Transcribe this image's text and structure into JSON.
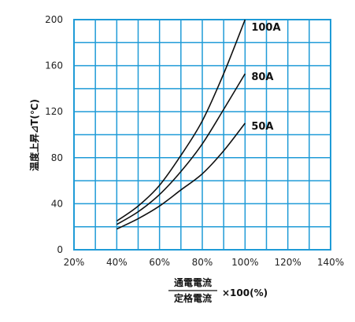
{
  "chart_data": {
    "type": "line",
    "ylabel": "温度上昇⊿T(℃)",
    "xlabel_numerator": "通電電流",
    "xlabel_denominator": "定格電流",
    "xlabel_suffix": "×100(%)",
    "xlim": [
      20,
      140
    ],
    "ylim": [
      0,
      200
    ],
    "x_ticks": [
      20,
      40,
      60,
      80,
      100,
      120,
      140
    ],
    "x_tick_labels": [
      "20%",
      "40%",
      "60%",
      "80%",
      "100%",
      "120%",
      "140%"
    ],
    "y_ticks": [
      0,
      40,
      80,
      120,
      160,
      200
    ],
    "y_tick_labels": [
      "0",
      "40",
      "80",
      "120",
      "160",
      "200"
    ],
    "grid": true,
    "x_minor_step": 10,
    "y_minor_step": 20,
    "colors": {
      "grid": "#1f9bd7",
      "axis": "#1f9bd7",
      "line": "#111111"
    },
    "series": [
      {
        "name": "100A",
        "x": [
          40,
          50,
          60,
          70,
          80,
          90,
          100
        ],
        "y": [
          25,
          38,
          56,
          82,
          112,
          153,
          200
        ]
      },
      {
        "name": "80A",
        "x": [
          40,
          50,
          60,
          70,
          80,
          90,
          100
        ],
        "y": [
          22,
          33,
          48,
          68,
          92,
          122,
          153
        ]
      },
      {
        "name": "50A",
        "x": [
          40,
          50,
          60,
          70,
          80,
          90,
          100
        ],
        "y": [
          18,
          27,
          38,
          52,
          66,
          86,
          110
        ]
      }
    ]
  }
}
